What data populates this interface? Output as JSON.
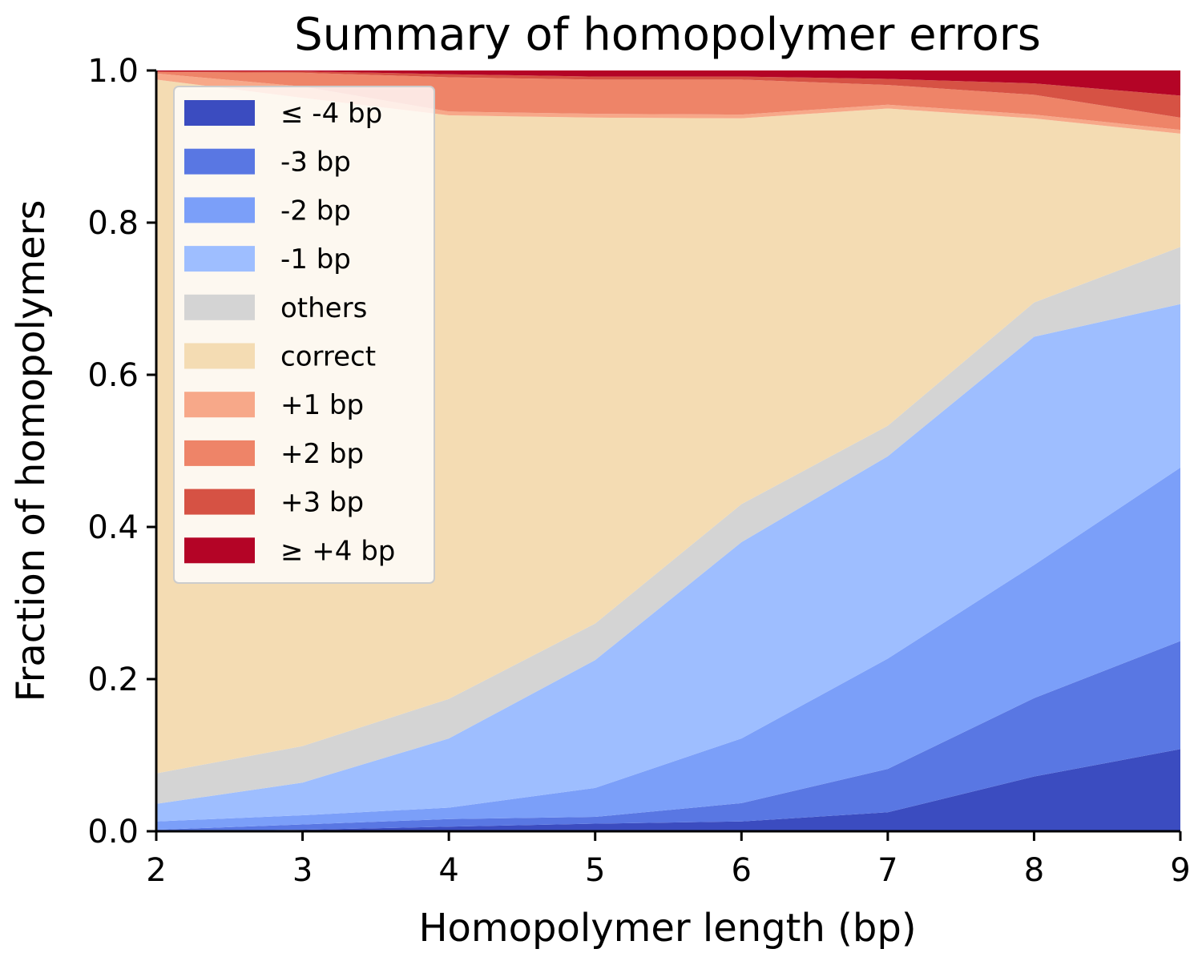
{
  "chart_data": {
    "type": "area",
    "stacked": true,
    "title": "Summary of homopolymer errors",
    "xlabel": "Homopolymer length (bp)",
    "ylabel": "Fraction of homopolymers",
    "x": [
      2,
      3,
      4,
      5,
      6,
      7,
      8,
      9
    ],
    "xlim": [
      2,
      9
    ],
    "ylim": [
      0,
      1
    ],
    "x_ticks": [
      "2",
      "3",
      "4",
      "5",
      "6",
      "7",
      "8",
      "9"
    ],
    "y_ticks": [
      "0.0",
      "0.2",
      "0.4",
      "0.6",
      "0.8",
      "1.0"
    ],
    "grid": false,
    "legend_position": "upper-left",
    "series": [
      {
        "name": "≤ -4 bp",
        "color": "#3b4cc0",
        "values": [
          0.0,
          0.002,
          0.006,
          0.01,
          0.013,
          0.025,
          0.072,
          0.108
        ]
      },
      {
        "name": "-3 bp",
        "color": "#5977e3",
        "values": [
          0.002,
          0.007,
          0.01,
          0.009,
          0.024,
          0.057,
          0.103,
          0.142
        ]
      },
      {
        "name": "-2 bp",
        "color": "#7b9ff9",
        "values": [
          0.011,
          0.012,
          0.015,
          0.038,
          0.085,
          0.145,
          0.175,
          0.228
        ]
      },
      {
        "name": "-1 bp",
        "color": "#9ebeff",
        "values": [
          0.023,
          0.043,
          0.091,
          0.168,
          0.258,
          0.266,
          0.3,
          0.215
        ]
      },
      {
        "name": "others",
        "color": "#d4d4d4",
        "values": [
          0.04,
          0.048,
          0.052,
          0.048,
          0.05,
          0.04,
          0.045,
          0.075
        ]
      },
      {
        "name": "correct",
        "color": "#f4dcb3",
        "values": [
          0.912,
          0.852,
          0.767,
          0.665,
          0.507,
          0.417,
          0.242,
          0.149
        ]
      },
      {
        "name": "+1 bp",
        "color": "#f7a889",
        "values": [
          0.008,
          0.015,
          0.005,
          0.005,
          0.005,
          0.005,
          0.005,
          0.005
        ]
      },
      {
        "name": "+2 bp",
        "color": "#ee8468",
        "values": [
          0.002,
          0.018,
          0.045,
          0.045,
          0.046,
          0.026,
          0.026,
          0.016
        ]
      },
      {
        "name": "+3 bp",
        "color": "#d65244",
        "values": [
          0.001,
          0.002,
          0.004,
          0.004,
          0.004,
          0.008,
          0.015,
          0.029
        ]
      },
      {
        "name": "≥ +4 bp",
        "color": "#b40426",
        "values": [
          0.001,
          0.001,
          0.005,
          0.008,
          0.008,
          0.011,
          0.017,
          0.033
        ]
      }
    ]
  }
}
